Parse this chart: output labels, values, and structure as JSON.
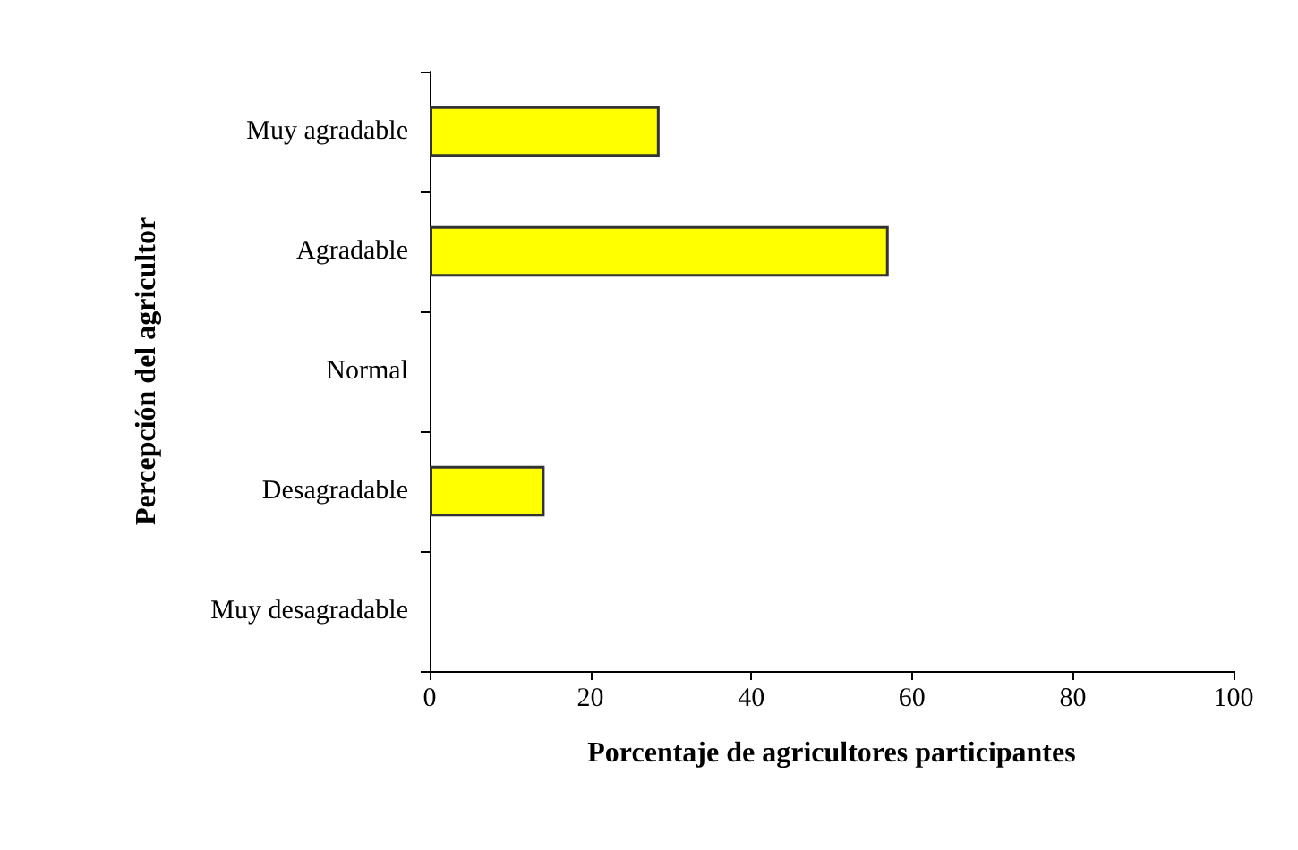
{
  "chart_data": {
    "type": "bar",
    "orientation": "horizontal",
    "xlabel": "Porcentaje de agricultores participantes",
    "ylabel": "Percepción del agricultor",
    "categories": [
      "Muy agradable",
      "Agradable",
      "Normal",
      "Desagradable",
      "Muy desagradable"
    ],
    "values": [
      28.6,
      57.1,
      0,
      14.3,
      0
    ],
    "color": "#ffff00",
    "xlim": [
      0,
      100
    ],
    "xticks": [
      0,
      20,
      40,
      60,
      80,
      100
    ],
    "grid": false
  }
}
